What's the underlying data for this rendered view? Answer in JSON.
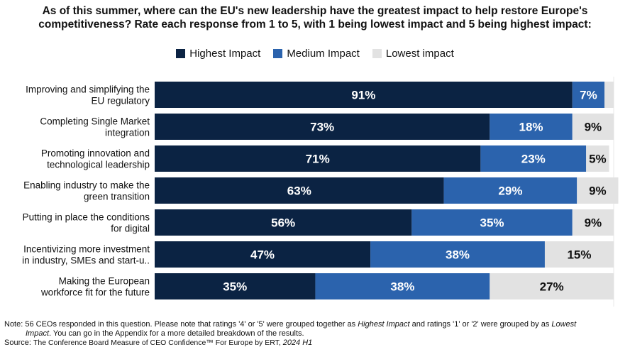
{
  "chart_data": {
    "type": "bar",
    "orientation": "horizontal",
    "stacked": true,
    "title": "As of this summer, where can the EU's new leadership have the greatest impact to help restore Europe's competitiveness? Rate each response from 1 to 5, with 1 being lowest impact and 5 being highest impact:",
    "categories": [
      "Improving and simplifying the EU regulatory",
      "Completing Single Market integration",
      "Promoting innovation and technological leadership",
      "Enabling industry to make the green transition",
      "Putting in place the conditions for digital",
      "Incentivizing more investment in industry, SMEs and start-u..",
      "Making the European workforce fit for the future"
    ],
    "category_lines": [
      [
        "Improving and simplifying the",
        "EU regulatory"
      ],
      [
        "Completing Single Market",
        "integration"
      ],
      [
        "Promoting innovation and",
        "technological leadership"
      ],
      [
        "Enabling industry to make the",
        "green transition"
      ],
      [
        "Putting in place the conditions",
        "for digital"
      ],
      [
        "Incentivizing more investment",
        "in industry, SMEs and start-u.."
      ],
      [
        "Making the European",
        "workforce fit for the future"
      ]
    ],
    "series": [
      {
        "name": "Highest Impact",
        "color": "#0b2343",
        "values": [
          91,
          73,
          71,
          63,
          56,
          47,
          35
        ]
      },
      {
        "name": "Medium Impact",
        "color": "#2b63ad",
        "values": [
          7,
          18,
          23,
          29,
          35,
          38,
          38
        ]
      },
      {
        "name": "Lowest impact",
        "color": "#e2e2e2",
        "values": [
          2,
          9,
          5,
          9,
          9,
          15,
          27
        ]
      }
    ],
    "xlim": [
      0,
      100
    ],
    "legend": "top",
    "grid": false
  },
  "note": {
    "prefix": "Note: 56 CEOs responded in this question. Please note that ratings '4' or '5' were grouped together as ",
    "em1": "Highest Impact",
    "mid": " and ratings '1' or '2' were grouped by as ",
    "em2": "Lowest",
    "em3": "Impact",
    "suffix": ". You can go in the Appendix for a more detailed breakdown of the results."
  },
  "source": {
    "label": "Source: ",
    "text": "The Conference Board Measure of CEO Confidence™ For Europe by ERT, ",
    "em": "2024 H1"
  }
}
